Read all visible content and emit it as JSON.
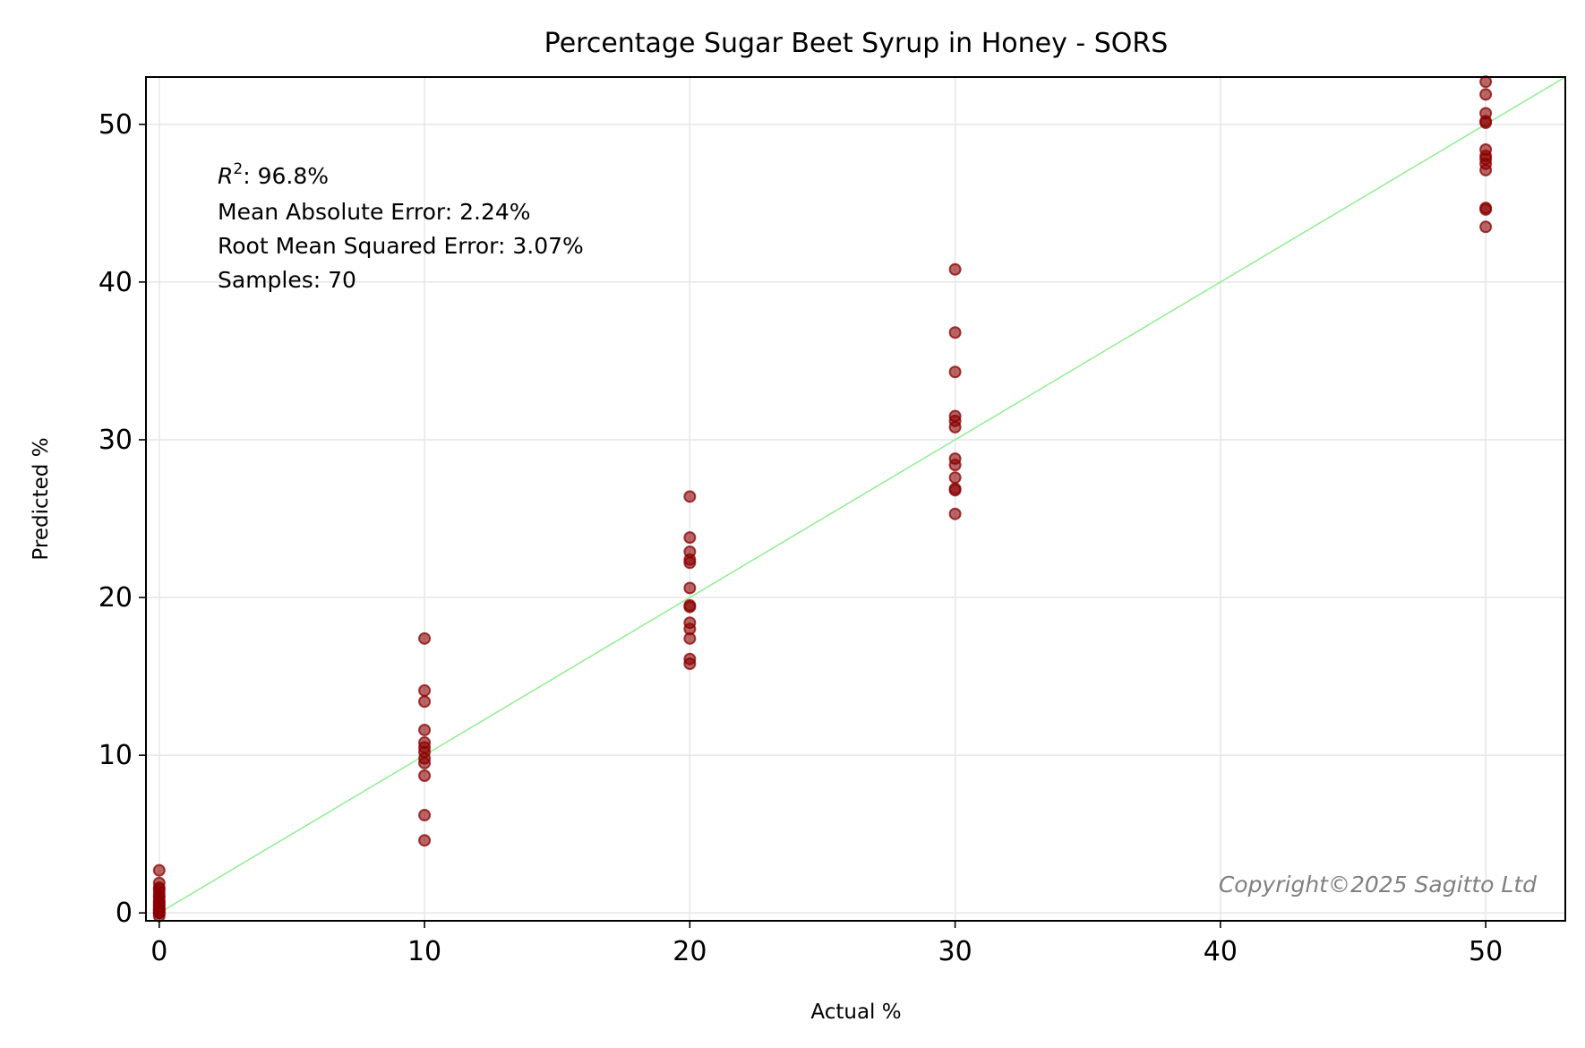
{
  "chart_data": {
    "type": "scatter",
    "title": "Percentage Sugar Beet Syrup in Honey - SORS",
    "xlabel": "Actual %",
    "ylabel": "Predicted %",
    "xlim": [
      -0.5,
      53
    ],
    "ylim": [
      -0.5,
      53
    ],
    "xticks": [
      0,
      10,
      20,
      30,
      40,
      50
    ],
    "yticks": [
      0,
      10,
      20,
      30,
      40,
      50
    ],
    "grid": true,
    "point_color": "#8b0000",
    "reference_line": {
      "label": "",
      "from": [
        0,
        0
      ],
      "to": [
        53,
        53
      ],
      "color": "#90ee90"
    },
    "stats": {
      "r2_label": "R",
      "r2_sup": "2",
      "r2_value": ": 96.8%",
      "mae": "Mean Absolute Error: 2.24%",
      "rmse": "Root Mean Squared Error: 3.07%",
      "samples": "Samples: 70"
    },
    "copyright": "Copyright©2025  Sagitto  Ltd",
    "series": [
      {
        "x": [
          0,
          0,
          0,
          0,
          0,
          0,
          0,
          0,
          0,
          0,
          0,
          0,
          0,
          0,
          0,
          0,
          0,
          0,
          0,
          0,
          10,
          10,
          10,
          10,
          10,
          10,
          10,
          10,
          10,
          10,
          10,
          10,
          20,
          20,
          20,
          20,
          20,
          20,
          20,
          20,
          20,
          20,
          20,
          20,
          20,
          30,
          30,
          30,
          30,
          30,
          30,
          30,
          30,
          30,
          30,
          30,
          30,
          50,
          50,
          50,
          50,
          50,
          50,
          50,
          50,
          50,
          50,
          50,
          50,
          50
        ],
        "y": [
          2.7,
          1.9,
          1.6,
          1.3,
          1.0,
          0.8,
          0.6,
          0.5,
          0.3,
          0.2,
          0.1,
          0.0,
          0.0,
          0.0,
          -0.2,
          0.4,
          1.1,
          1.5,
          0.7,
          0.2,
          17.4,
          14.1,
          13.4,
          11.6,
          10.8,
          10.5,
          10.2,
          9.8,
          9.5,
          8.7,
          6.2,
          4.6,
          26.4,
          23.8,
          22.9,
          22.4,
          22.2,
          20.6,
          19.5,
          18.4,
          18.0,
          17.4,
          16.1,
          15.8,
          19.4,
          40.8,
          36.8,
          34.3,
          31.5,
          31.2,
          30.8,
          28.8,
          28.4,
          27.6,
          26.9,
          26.8,
          25.3,
          52.7,
          51.9,
          50.7,
          50.2,
          48.4,
          48.0,
          47.8,
          47.5,
          47.1,
          44.7,
          44.6,
          43.5,
          50.1
        ]
      }
    ]
  }
}
